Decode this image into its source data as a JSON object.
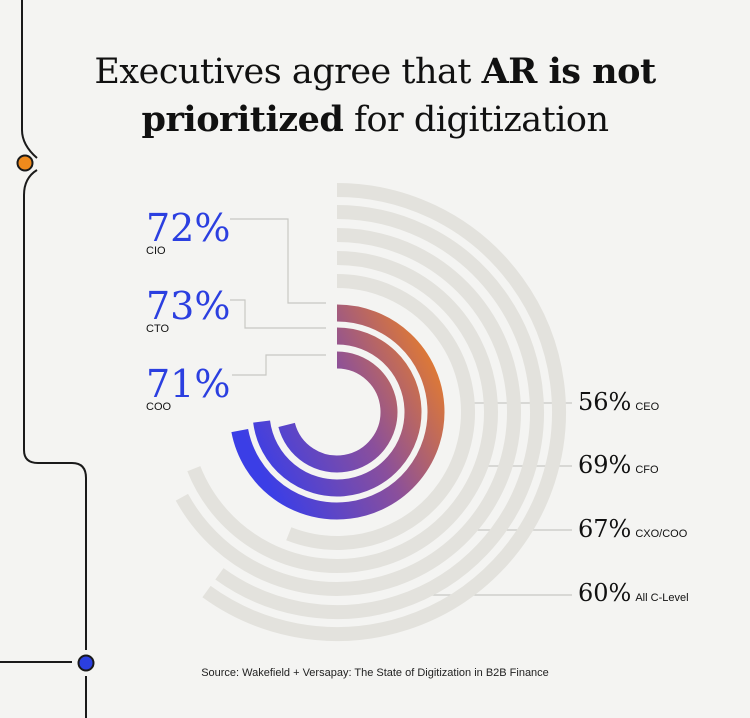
{
  "title": {
    "part1": "Executives agree that ",
    "bold1": "AR is not",
    "bold2": "prioritized",
    "part2": " for digitization"
  },
  "source": "Source: Wakefield + Versapay: The State of Digitization in B2B Finance",
  "colors": {
    "gray_ring": "#e3e2dd",
    "gradient_start": "#3b3ee6",
    "gradient_mid": "#8a4f9c",
    "gradient_end": "#f08220",
    "left_label": "#2b3fe0",
    "orange_dot": "#f08a1c",
    "blue_dot": "#2b3fe0"
  },
  "chart_data": {
    "type": "radial-bar",
    "title": "Executives agree that AR is not prioritized for digitization",
    "unit": "%",
    "series": [
      {
        "name": "CIO",
        "value": 72,
        "group": "highlighted"
      },
      {
        "name": "CTO",
        "value": 73,
        "group": "highlighted"
      },
      {
        "name": "COO",
        "value": 71,
        "group": "highlighted"
      },
      {
        "name": "CEO",
        "value": 56,
        "group": "gray"
      },
      {
        "name": "CFO",
        "value": 69,
        "group": "gray"
      },
      {
        "name": "CXO/COO",
        "value": 67,
        "group": "gray"
      },
      {
        "name": "All C-Level",
        "value": 60,
        "group": "gray"
      }
    ]
  },
  "labels_left": [
    {
      "pct": "72%",
      "name": "CIO"
    },
    {
      "pct": "73%",
      "name": "CTO"
    },
    {
      "pct": "71%",
      "name": "COO"
    }
  ],
  "labels_right": [
    {
      "pct": "56%",
      "name": "CEO"
    },
    {
      "pct": "69%",
      "name": "CFO"
    },
    {
      "pct": "67%",
      "name": "CXO/COO"
    },
    {
      "pct": "60%",
      "name": "All C-Level"
    }
  ]
}
